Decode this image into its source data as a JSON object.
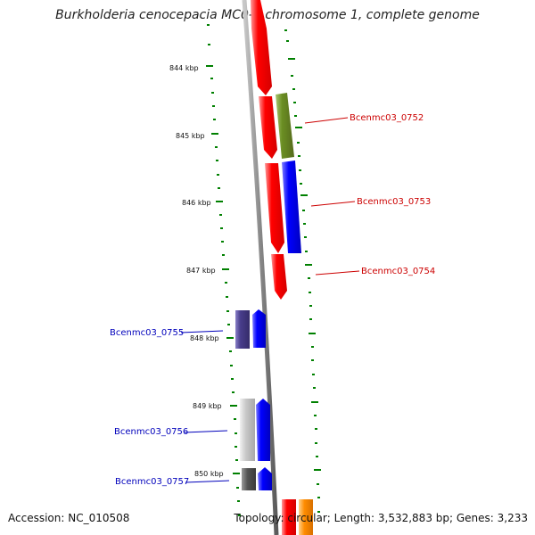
{
  "title": "Burkholderia cenocepacia MC0-3 chromosome 1, complete genome",
  "footer": {
    "accession": "Accession: NC_010508",
    "summary": "Topology: circular; Length: 3,532,883 bp; Genes: 3,233"
  },
  "kbp_labels": [
    "844 kbp",
    "845 kbp",
    "846 kbp",
    "847 kbp",
    "848 kbp",
    "849 kbp",
    "850 kbp"
  ],
  "genes_right": [
    {
      "name": "Bcenmc03_0752",
      "color": "#cc0000"
    },
    {
      "name": "Bcenmc03_0753",
      "color": "#cc0000"
    },
    {
      "name": "Bcenmc03_0754",
      "color": "#cc0000"
    }
  ],
  "genes_left": [
    {
      "name": "Bcenmc03_0755",
      "color": "#0000bb"
    },
    {
      "name": "Bcenmc03_0756",
      "color": "#0000bb"
    },
    {
      "name": "Bcenmc03_0757",
      "color": "#0000bb"
    }
  ],
  "feature_colors": {
    "cds_red": "#ff0000",
    "cds_blue": "#0000ff",
    "cds_olive": "#6b8e23",
    "cds_slate": "#483d8b",
    "cds_silver": "#c0c0c0",
    "cds_darkgray": "#555555",
    "cds_orange": "#ff8c00",
    "tick_green": "#008000",
    "backbone_gray": "#888888"
  }
}
